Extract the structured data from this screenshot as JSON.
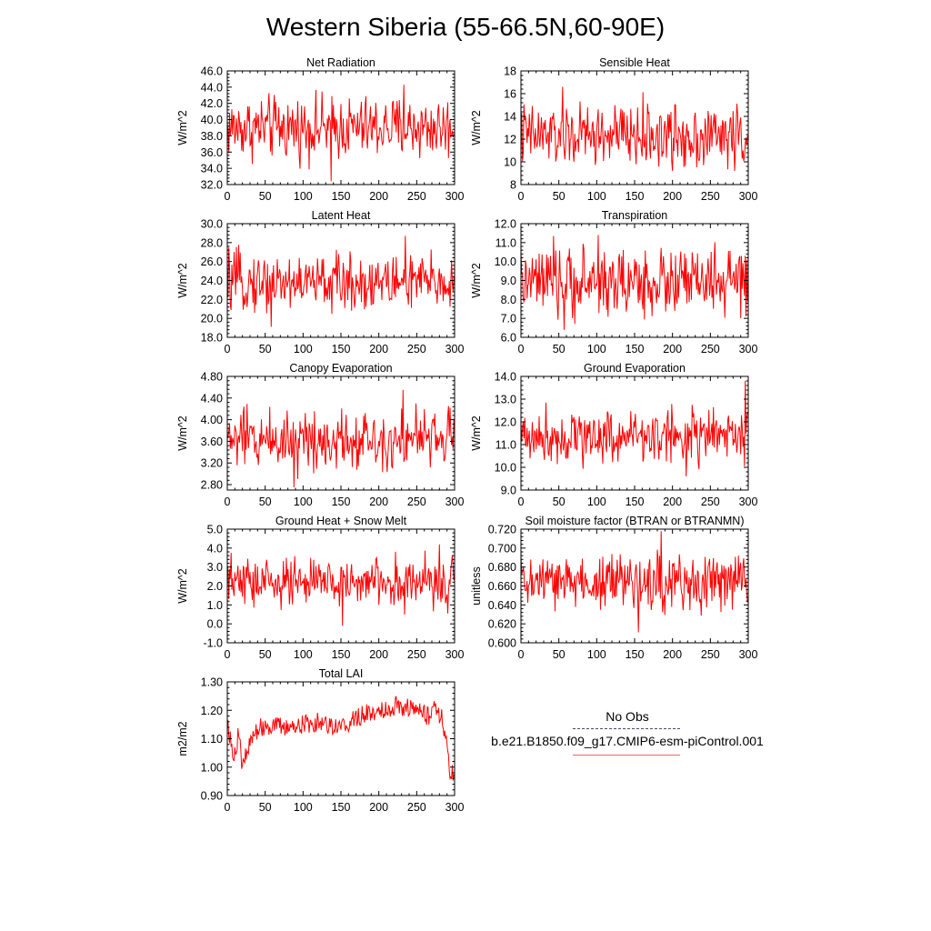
{
  "title": "Western Siberia (55-66.5N,60-90E)",
  "legend": {
    "entries": [
      {
        "label": "No Obs",
        "style": "dashed",
        "color": "#4a4a6a"
      },
      {
        "label": "b.e21.B1850.f09_g17.CMIP6-esm-piControl.001",
        "style": "solid",
        "color": "#ff0000"
      }
    ]
  },
  "chart_data": [
    {
      "type": "line",
      "title": "Net Radiation",
      "ylabel": "W/m^2",
      "xlim": [
        0,
        300
      ],
      "xticks": [
        0,
        50,
        100,
        150,
        200,
        250,
        300
      ],
      "ylim": [
        32,
        46
      ],
      "yticks": [
        "32.0",
        "34.0",
        "36.0",
        "38.0",
        "40.0",
        "42.0",
        "44.0",
        "46.0"
      ],
      "series": [
        {
          "color": "#ff0000",
          "x_range": [
            0,
            299
          ],
          "mean": 39.0,
          "amp": 1.9,
          "max": 44.3,
          "min": 32.4,
          "max_x": 233,
          "min_x": 137
        }
      ]
    },
    {
      "type": "line",
      "title": "Sensible Heat",
      "ylabel": "W/m^2",
      "xlim": [
        0,
        300
      ],
      "xticks": [
        0,
        50,
        100,
        150,
        200,
        250,
        300
      ],
      "ylim": [
        8,
        18
      ],
      "yticks": [
        "8",
        "10",
        "12",
        "14",
        "16",
        "18"
      ],
      "series": [
        {
          "color": "#ff0000",
          "x_range": [
            0,
            299
          ],
          "mean": 12.3,
          "amp": 1.4,
          "max": 16.6,
          "min": 9.2,
          "max_x": 55,
          "min_x": 200
        }
      ]
    },
    {
      "type": "line",
      "title": "Latent Heat",
      "ylabel": "W/m^2",
      "xlim": [
        0,
        300
      ],
      "xticks": [
        0,
        50,
        100,
        150,
        200,
        250,
        300
      ],
      "ylim": [
        18,
        30
      ],
      "yticks": [
        "18.0",
        "20.0",
        "22.0",
        "24.0",
        "26.0",
        "28.0",
        "30.0"
      ],
      "series": [
        {
          "color": "#ff0000",
          "x_range": [
            0,
            299
          ],
          "mean": 23.8,
          "amp": 1.5,
          "max": 28.7,
          "min": 19.1,
          "max_x": 235,
          "min_x": 58
        }
      ]
    },
    {
      "type": "line",
      "title": "Transpiration",
      "ylabel": "W/m^2",
      "xlim": [
        0,
        300
      ],
      "xticks": [
        0,
        50,
        100,
        150,
        200,
        250,
        300
      ],
      "ylim": [
        6,
        12
      ],
      "yticks": [
        "6.0",
        "7.0",
        "8.0",
        "9.0",
        "10.0",
        "11.0",
        "12.0"
      ],
      "series": [
        {
          "color": "#ff0000",
          "x_range": [
            0,
            299
          ],
          "mean": 8.9,
          "amp": 0.9,
          "max": 11.4,
          "min": 6.4,
          "max_x": 102,
          "min_x": 57
        }
      ]
    },
    {
      "type": "line",
      "title": "Canopy Evaporation",
      "ylabel": "W/m^2",
      "xlim": [
        0,
        300
      ],
      "xticks": [
        0,
        50,
        100,
        150,
        200,
        250,
        300
      ],
      "ylim": [
        2.7,
        4.8
      ],
      "yticks": [
        "2.80",
        "3.20",
        "3.60",
        "4.00",
        "4.40",
        "4.80"
      ],
      "series": [
        {
          "color": "#ff0000",
          "x_range": [
            0,
            299
          ],
          "mean": 3.65,
          "amp": 0.28,
          "max": 4.55,
          "min": 2.75,
          "max_x": 232,
          "min_x": 88
        }
      ]
    },
    {
      "type": "line",
      "title": "Ground Evaporation",
      "ylabel": "W/m^2",
      "xlim": [
        0,
        300
      ],
      "xticks": [
        0,
        50,
        100,
        150,
        200,
        250,
        300
      ],
      "ylim": [
        9,
        14
      ],
      "yticks": [
        "9.0",
        "10.0",
        "11.0",
        "12.0",
        "13.0",
        "14.0"
      ],
      "series": [
        {
          "color": "#ff0000",
          "x_range": [
            0,
            299
          ],
          "mean": 11.4,
          "amp": 0.6,
          "max": 13.8,
          "min": 9.6,
          "max_x": 296,
          "min_x": 218
        }
      ]
    },
    {
      "type": "line",
      "title": "Ground Heat + Snow Melt",
      "ylabel": "W/m^2",
      "xlim": [
        0,
        300
      ],
      "xticks": [
        0,
        50,
        100,
        150,
        200,
        250,
        300
      ],
      "ylim": [
        -1,
        5
      ],
      "yticks": [
        "-1.0",
        "0.0",
        "1.0",
        "2.0",
        "3.0",
        "4.0",
        "5.0"
      ],
      "series": [
        {
          "color": "#ff0000",
          "x_range": [
            0,
            299
          ],
          "mean": 2.2,
          "amp": 0.65,
          "max": 4.2,
          "min": -0.1,
          "max_x": 280,
          "min_x": 152
        }
      ]
    },
    {
      "type": "line",
      "title": "Soil moisture factor (BTRAN or BTRANMN)",
      "ylabel": "unitless",
      "xlim": [
        0,
        300
      ],
      "xticks": [
        0,
        50,
        100,
        150,
        200,
        250,
        300
      ],
      "ylim": [
        0.6,
        0.72
      ],
      "yticks": [
        "0.600",
        "0.620",
        "0.640",
        "0.660",
        "0.680",
        "0.700",
        "0.720"
      ],
      "series": [
        {
          "color": "#ff0000",
          "x_range": [
            0,
            299
          ],
          "mean": 0.664,
          "amp": 0.015,
          "max": 0.718,
          "min": 0.611,
          "max_x": 185,
          "min_x": 155
        }
      ]
    },
    {
      "type": "line",
      "title": "Total LAI",
      "ylabel": "m2/m2",
      "xlim": [
        0,
        300
      ],
      "xticks": [
        0,
        50,
        100,
        150,
        200,
        250,
        300
      ],
      "ylim": [
        0.9,
        1.3
      ],
      "yticks": [
        "0.90",
        "1.00",
        "1.10",
        "1.20",
        "1.30"
      ],
      "series": [
        {
          "color": "#ff0000",
          "x_range": [
            0,
            299
          ],
          "points": [
            [
              0,
              1.18
            ],
            [
              5,
              1.07
            ],
            [
              10,
              1.05
            ],
            [
              15,
              1.12
            ],
            [
              20,
              1.0
            ],
            [
              25,
              1.04
            ],
            [
              35,
              1.12
            ],
            [
              50,
              1.15
            ],
            [
              75,
              1.14
            ],
            [
              100,
              1.15
            ],
            [
              125,
              1.16
            ],
            [
              150,
              1.14
            ],
            [
              175,
              1.18
            ],
            [
              200,
              1.2
            ],
            [
              225,
              1.22
            ],
            [
              250,
              1.2
            ],
            [
              265,
              1.18
            ],
            [
              275,
              1.22
            ],
            [
              283,
              1.17
            ],
            [
              290,
              1.1
            ],
            [
              294,
              0.93
            ],
            [
              297,
              0.98
            ],
            [
              299,
              0.99
            ]
          ],
          "jitter": 0.035
        }
      ]
    }
  ]
}
